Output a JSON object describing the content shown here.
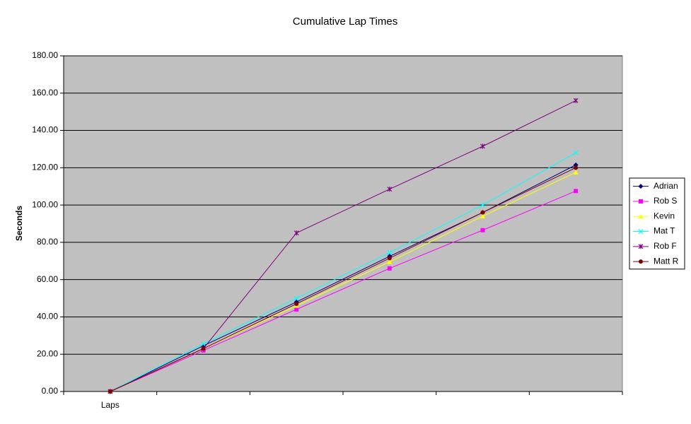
{
  "chart_data": {
    "type": "line",
    "title": "Cumulative Lap Times",
    "ylabel": "Seconds",
    "categories": [
      "Laps",
      null,
      null,
      null,
      null,
      null
    ],
    "series": [
      {
        "name": "Adrian",
        "color": "#000080",
        "marker": "diamond",
        "values": [
          0,
          24.5,
          48,
          72.5,
          96,
          121.5
        ]
      },
      {
        "name": "Rob S",
        "color": "#ff00ff",
        "marker": "square",
        "values": [
          0,
          22,
          44,
          66,
          86.5,
          107.5
        ]
      },
      {
        "name": "Kevin",
        "color": "#ffff00",
        "marker": "triangle",
        "values": [
          0,
          23,
          46,
          69.5,
          94,
          117.5
        ]
      },
      {
        "name": "Mat T",
        "color": "#00ffff",
        "marker": "x",
        "values": [
          0,
          25.5,
          50,
          74.5,
          100,
          128
        ]
      },
      {
        "name": "Rob F",
        "color": "#800080",
        "marker": "star",
        "values": [
          0,
          23,
          85,
          108.5,
          131.5,
          156
        ]
      },
      {
        "name": "Matt R",
        "color": "#800000",
        "marker": "circle",
        "values": [
          0,
          23,
          47,
          71.5,
          96,
          120
        ]
      }
    ],
    "ylim": [
      0,
      180
    ],
    "yticks": [
      {
        "value": 0,
        "label": "0.00"
      },
      {
        "value": 20,
        "label": "20.00"
      },
      {
        "value": 40,
        "label": "40.00"
      },
      {
        "value": 60,
        "label": "60.00"
      },
      {
        "value": 80,
        "label": "80.00"
      },
      {
        "value": 100,
        "label": "100.00"
      },
      {
        "value": 120,
        "label": "120.00"
      },
      {
        "value": 140,
        "label": "140.00"
      },
      {
        "value": 160,
        "label": "160.00"
      },
      {
        "value": 180,
        "label": "180.00"
      }
    ],
    "grid": true,
    "legend": "right",
    "plot_background": "#c0c0c0"
  }
}
